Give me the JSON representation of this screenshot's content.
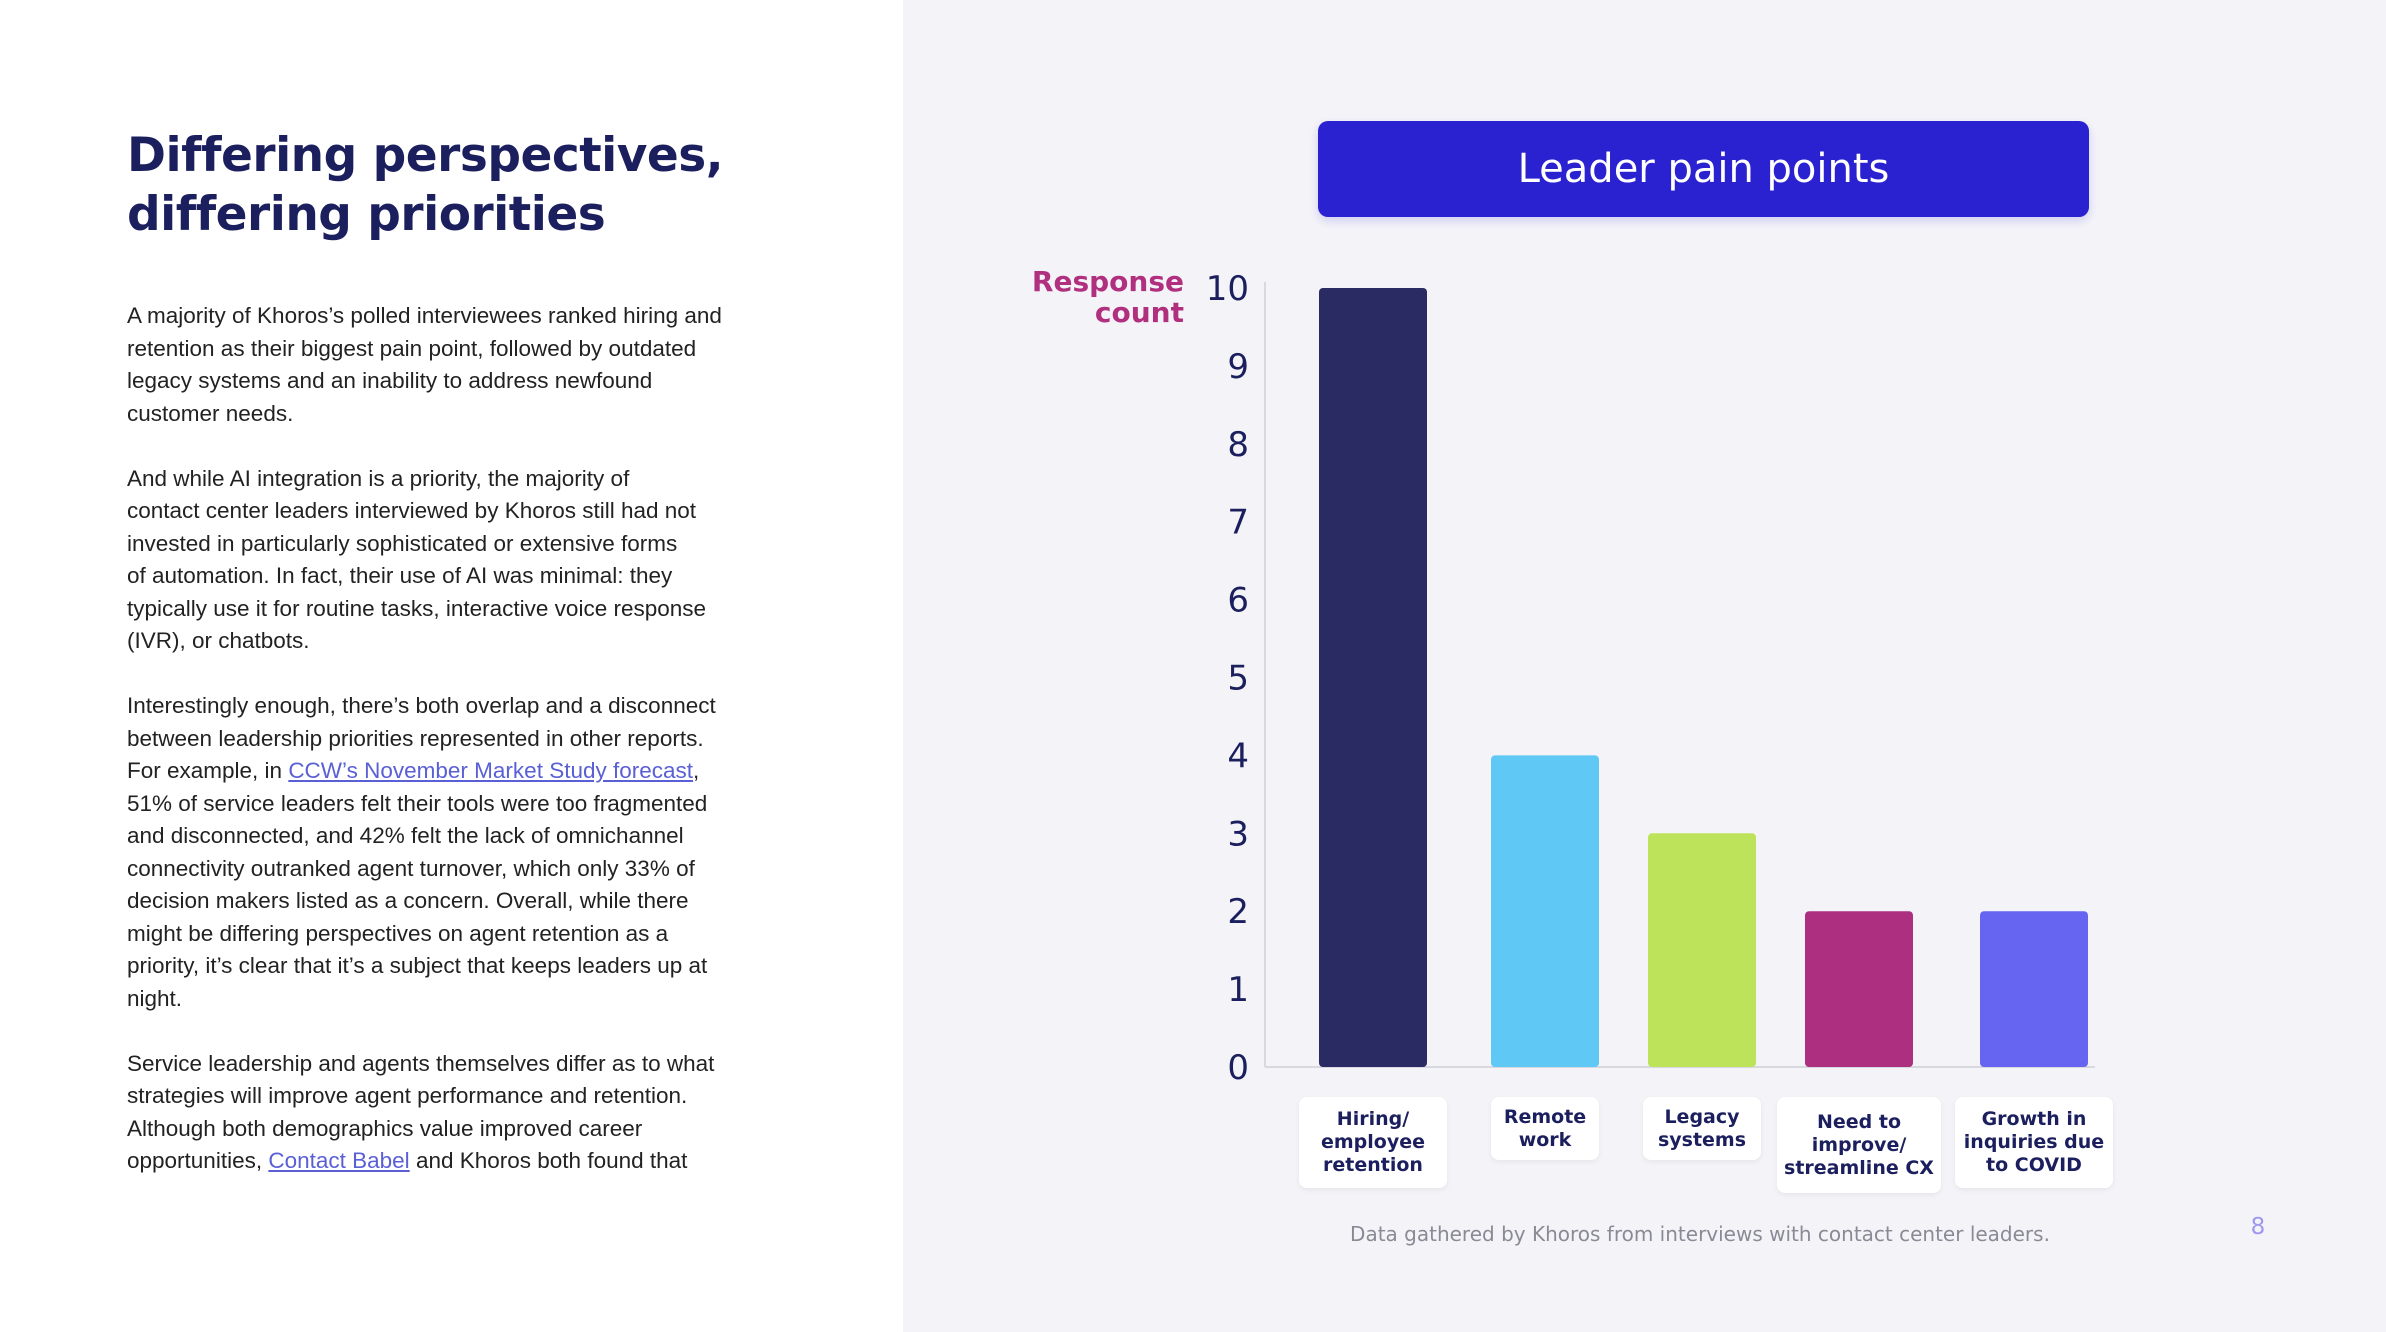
{
  "heading": {
    "lines": [
      "Differing perspectives,",
      "differing priorities"
    ]
  },
  "body": {
    "p1": [
      "A majority of Khoros’s polled interviewees ranked hiring and",
      "retention as their biggest pain point, followed by outdated",
      "legacy systems and an inability to address newfound",
      "customer needs."
    ],
    "p2": [
      "And while AI integration is a priority, the majority of",
      "contact center leaders interviewed by Khoros still had not",
      "invested in particularly sophisticated or extensive forms",
      "of automation. In fact, their use of AI was minimal: they",
      "typically use it for routine tasks, interactive voice response",
      "(IVR), or chatbots."
    ],
    "p3": {
      "line1": "Interestingly enough, there’s both overlap and a disconnect",
      "line2": "between leadership priorities represented in other reports.",
      "line3_pre": "For example, in ",
      "line3_link": "CCW’s November Market Study forecast",
      "line3_post": ",",
      "rest": [
        "51% of service leaders felt their tools were too fragmented",
        "and disconnected, and 42% felt the lack of omnichannel",
        "connectivity outranked agent turnover, which only 33% of",
        "decision makers listed as a concern. Overall, while there",
        "might be differing perspectives on agent retention as a",
        "priority, it’s clear that it’s a subject that keeps leaders up at",
        "night."
      ]
    },
    "p4": {
      "lines": [
        "Service leadership and agents themselves differ as to what",
        "strategies will improve agent performance and retention.",
        "Although both demographics value improved career"
      ],
      "last_pre": "opportunities, ",
      "last_link": "Contact Babel",
      "last_post": " and Khoros both found that"
    }
  },
  "chart_data": {
    "type": "bar",
    "title": "Leader pain points",
    "ylabel_lines": [
      "Response",
      "count"
    ],
    "xlabel": "",
    "categories": [
      "Hiring/\nemployee\nretention",
      "Remote\nwork",
      "Legacy\nsystems",
      "Need to\nimprove/\nstreamline CX",
      "Growth in\ninquiries due\nto COVID"
    ],
    "values": [
      10,
      4,
      3,
      2,
      2
    ],
    "colors": [
      "#2b2b63",
      "#5fc8f5",
      "#bde35a",
      "#ad2f80",
      "#6565f2"
    ],
    "yticks": [
      0,
      1,
      2,
      3,
      4,
      5,
      6,
      7,
      8,
      9,
      10
    ],
    "ylim": [
      0,
      10
    ],
    "grid": false,
    "legend": "none"
  },
  "caption": "Data gathered by Khoros from interviews with contact center leaders.",
  "page_number": "8",
  "colors": {
    "heading": "#1c1f5e",
    "title_box": "#2a21d1",
    "ylabel": "#b0307f",
    "link": "#5a5fd6",
    "right_panel_bg": "#f4f4f8"
  }
}
